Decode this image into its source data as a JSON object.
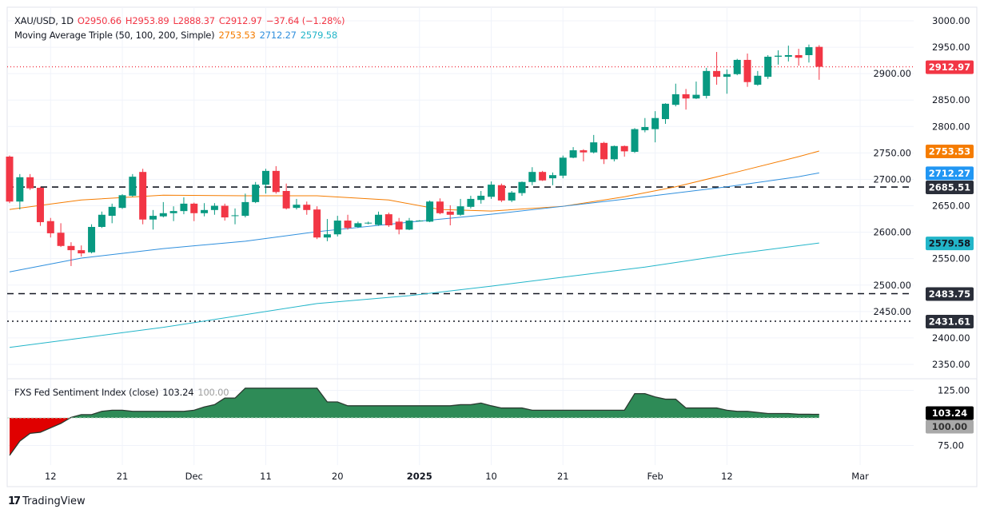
{
  "legend": {
    "symbol": "XAU/USD, 1D",
    "open": "O2950.66",
    "high": "H2953.89",
    "low": "L2888.37",
    "close": "C2912.97",
    "change": "−37.64 (−1.28%)",
    "ma_label": "Moving Average Triple (50, 100, 200, Simple)",
    "ma50": "2753.53",
    "ma100": "2712.27",
    "ma200": "2579.58",
    "sentiment_label": "FXS Fed Sentiment Index (close)",
    "sentiment_value": "103.24",
    "sentiment_base": "100.00"
  },
  "brand": {
    "name": "TradingView"
  },
  "colors": {
    "up": "#089981",
    "down": "#f23645",
    "ma50": "#f57c00",
    "ma100": "#2f8fdd",
    "ma200": "#22b5c9",
    "sentiment_pos": "#2e8b57",
    "sentiment_neg": "#e00000",
    "grid": "#f0f3fa",
    "line": "#131722"
  },
  "chart_data": [
    {
      "type": "candlestick",
      "title": "XAU/USD, 1D",
      "ylim": [
        2325,
        3020
      ],
      "y_ticks": [
        "2350.00",
        "2400.00",
        "2450.00",
        "2500.00",
        "2550.00",
        "2600.00",
        "2650.00",
        "2700.00",
        "2750.00",
        "2800.00",
        "2850.00",
        "2900.00",
        "2950.00",
        "3000.00"
      ],
      "x_ticks": [
        {
          "date": "2024-11-12",
          "label": "12"
        },
        {
          "date": "2024-11-21",
          "label": "21"
        },
        {
          "date": "2024-12-02",
          "label": "Dec"
        },
        {
          "date": "2024-12-11",
          "label": "11"
        },
        {
          "date": "2024-12-20",
          "label": "20"
        },
        {
          "date": "2025-01-01",
          "label": "2025",
          "bold": true
        },
        {
          "date": "2025-01-10",
          "label": "10"
        },
        {
          "date": "2025-01-21",
          "label": "21"
        },
        {
          "date": "2025-02-03",
          "label": "Feb"
        },
        {
          "date": "2025-02-12",
          "label": "12"
        },
        {
          "date": "2025-03-03",
          "label": "Mar"
        }
      ],
      "grid": true,
      "candles_columns": [
        "date",
        "open",
        "high",
        "low",
        "close"
      ],
      "candles": [
        [
          "2024-11-06",
          2743,
          2745,
          2655,
          2658
        ],
        [
          "2024-11-07",
          2658,
          2710,
          2643,
          2704
        ],
        [
          "2024-11-08",
          2704,
          2710,
          2680,
          2683
        ],
        [
          "2024-11-11",
          2684,
          2686,
          2612,
          2619
        ],
        [
          "2024-11-12",
          2621,
          2627,
          2590,
          2598
        ],
        [
          "2024-11-13",
          2599,
          2617,
          2572,
          2574
        ],
        [
          "2024-11-14",
          2574,
          2581,
          2536,
          2566
        ],
        [
          "2024-11-15",
          2566,
          2575,
          2554,
          2560
        ],
        [
          "2024-11-18",
          2562,
          2615,
          2560,
          2610
        ],
        [
          "2024-11-19",
          2610,
          2639,
          2608,
          2633
        ],
        [
          "2024-11-20",
          2631,
          2654,
          2617,
          2648
        ],
        [
          "2024-11-21",
          2646,
          2672,
          2644,
          2670
        ],
        [
          "2024-11-22",
          2669,
          2710,
          2667,
          2705
        ],
        [
          "2024-11-25",
          2714,
          2720,
          2615,
          2624
        ],
        [
          "2024-11-26",
          2624,
          2642,
          2605,
          2631
        ],
        [
          "2024-11-27",
          2630,
          2657,
          2628,
          2636
        ],
        [
          "2024-11-28",
          2636,
          2649,
          2621,
          2640
        ],
        [
          "2024-11-29",
          2640,
          2666,
          2634,
          2654
        ],
        [
          "2024-12-02",
          2654,
          2656,
          2621,
          2636
        ],
        [
          "2024-12-03",
          2636,
          2655,
          2630,
          2642
        ],
        [
          "2024-12-04",
          2642,
          2655,
          2633,
          2650
        ],
        [
          "2024-12-05",
          2650,
          2654,
          2622,
          2628
        ],
        [
          "2024-12-06",
          2631,
          2645,
          2615,
          2632
        ],
        [
          "2024-12-09",
          2631,
          2673,
          2628,
          2657
        ],
        [
          "2024-12-10",
          2657,
          2695,
          2655,
          2690
        ],
        [
          "2024-12-11",
          2690,
          2720,
          2673,
          2716
        ],
        [
          "2024-12-12",
          2716,
          2725,
          2673,
          2676
        ],
        [
          "2024-12-13",
          2678,
          2692,
          2643,
          2645
        ],
        [
          "2024-12-16",
          2646,
          2663,
          2643,
          2652
        ],
        [
          "2024-12-17",
          2652,
          2658,
          2633,
          2642
        ],
        [
          "2024-12-18",
          2643,
          2649,
          2587,
          2590
        ],
        [
          "2024-12-19",
          2590,
          2625,
          2583,
          2596
        ],
        [
          "2024-12-20",
          2596,
          2631,
          2592,
          2622
        ],
        [
          "2024-12-23",
          2622,
          2633,
          2605,
          2608
        ],
        [
          "2024-12-24",
          2610,
          2620,
          2608,
          2617
        ],
        [
          "2024-12-25",
          2617,
          2620,
          2615,
          2618
        ],
        [
          "2024-12-26",
          2614,
          2639,
          2612,
          2633
        ],
        [
          "2024-12-27",
          2634,
          2637,
          2610,
          2613
        ],
        [
          "2024-12-30",
          2620,
          2627,
          2596,
          2605
        ],
        [
          "2024-12-31",
          2605,
          2627,
          2604,
          2622
        ],
        [
          "2025-01-01",
          2622,
          2623,
          2621,
          2622
        ],
        [
          "2025-01-02",
          2620,
          2660,
          2619,
          2658
        ],
        [
          "2025-01-03",
          2658,
          2664,
          2634,
          2636
        ],
        [
          "2025-01-06",
          2639,
          2651,
          2613,
          2633
        ],
        [
          "2025-01-07",
          2633,
          2663,
          2631,
          2649
        ],
        [
          "2025-01-08",
          2648,
          2669,
          2645,
          2663
        ],
        [
          "2025-01-09",
          2661,
          2678,
          2654,
          2669
        ],
        [
          "2025-01-10",
          2667,
          2696,
          2663,
          2690
        ],
        [
          "2025-01-13",
          2689,
          2692,
          2657,
          2660
        ],
        [
          "2025-01-14",
          2660,
          2678,
          2657,
          2675
        ],
        [
          "2025-01-15",
          2674,
          2696,
          2669,
          2695
        ],
        [
          "2025-01-16",
          2695,
          2723,
          2689,
          2714
        ],
        [
          "2025-01-17",
          2714,
          2716,
          2697,
          2698
        ],
        [
          "2025-01-20",
          2702,
          2713,
          2689,
          2708
        ],
        [
          "2025-01-21",
          2707,
          2745,
          2702,
          2741
        ],
        [
          "2025-01-22",
          2741,
          2761,
          2740,
          2755
        ],
        [
          "2025-01-23",
          2755,
          2757,
          2734,
          2751
        ],
        [
          "2025-01-24",
          2751,
          2784,
          2749,
          2770
        ],
        [
          "2025-01-27",
          2769,
          2771,
          2729,
          2738
        ],
        [
          "2025-01-28",
          2738,
          2764,
          2734,
          2763
        ],
        [
          "2025-01-29",
          2763,
          2764,
          2743,
          2753
        ],
        [
          "2025-01-30",
          2752,
          2797,
          2750,
          2795
        ],
        [
          "2025-01-31",
          2793,
          2816,
          2789,
          2799
        ],
        [
          "2025-02-03",
          2795,
          2829,
          2770,
          2816
        ],
        [
          "2025-02-04",
          2814,
          2844,
          2805,
          2843
        ],
        [
          "2025-02-05",
          2841,
          2881,
          2838,
          2861
        ],
        [
          "2025-02-06",
          2861,
          2871,
          2832,
          2853
        ],
        [
          "2025-02-07",
          2853,
          2885,
          2852,
          2860
        ],
        [
          "2025-02-10",
          2858,
          2911,
          2853,
          2905
        ],
        [
          "2025-02-11",
          2905,
          2941,
          2879,
          2894
        ],
        [
          "2025-02-12",
          2894,
          2908,
          2862,
          2899
        ],
        [
          "2025-02-13",
          2899,
          2928,
          2897,
          2926
        ],
        [
          "2025-02-14",
          2926,
          2938,
          2875,
          2884
        ],
        [
          "2025-02-17",
          2879,
          2905,
          2877,
          2896
        ],
        [
          "2025-02-18",
          2894,
          2935,
          2890,
          2932
        ],
        [
          "2025-02-19",
          2932,
          2944,
          2917,
          2934
        ],
        [
          "2025-02-20",
          2932,
          2953,
          2923,
          2935
        ],
        [
          "2025-02-21",
          2935,
          2947,
          2915,
          2930
        ],
        [
          "2025-02-24",
          2935,
          2955,
          2921,
          2950
        ],
        [
          "2025-02-25",
          2950.66,
          2953.89,
          2888.37,
          2912.97
        ]
      ],
      "moving_averages": [
        {
          "name": "MA 50",
          "color_key": "ma50",
          "points": [
            [
              "2024-11-06",
              2643
            ],
            [
              "2024-11-15",
              2661
            ],
            [
              "2024-11-27",
              2670
            ],
            [
              "2024-12-09",
              2669
            ],
            [
              "2024-12-18",
              2669
            ],
            [
              "2024-12-27",
              2661
            ],
            [
              "2025-01-03",
              2643
            ],
            [
              "2025-01-10",
              2640
            ],
            [
              "2025-01-21",
              2649
            ],
            [
              "2025-01-29",
              2667
            ],
            [
              "2025-02-05",
              2686
            ],
            [
              "2025-02-13",
              2714
            ],
            [
              "2025-02-21",
              2743
            ],
            [
              "2025-02-25",
              2753.53
            ]
          ]
        },
        {
          "name": "MA 100",
          "color_key": "ma100",
          "points": [
            [
              "2024-11-06",
              2525
            ],
            [
              "2024-11-15",
              2551
            ],
            [
              "2024-11-27",
              2569
            ],
            [
              "2024-12-09",
              2583
            ],
            [
              "2024-12-18",
              2601
            ],
            [
              "2024-12-31",
              2619
            ],
            [
              "2025-01-10",
              2634
            ],
            [
              "2025-01-21",
              2649
            ],
            [
              "2025-01-31",
              2667
            ],
            [
              "2025-02-12",
              2686
            ],
            [
              "2025-02-21",
              2705
            ],
            [
              "2025-02-25",
              2712.27
            ]
          ]
        },
        {
          "name": "MA 200",
          "color_key": "ma200",
          "points": [
            [
              "2024-11-06",
              2382
            ],
            [
              "2024-11-27",
              2420
            ],
            [
              "2024-12-18",
              2465
            ],
            [
              "2024-12-31",
              2480
            ],
            [
              "2025-01-10",
              2498
            ],
            [
              "2025-01-21",
              2515
            ],
            [
              "2025-01-31",
              2534
            ],
            [
              "2025-02-12",
              2557
            ],
            [
              "2025-02-25",
              2579.58
            ]
          ]
        }
      ],
      "horizontal_lines": [
        {
          "value": 2912.97,
          "label": "2912.97",
          "style": "dotted",
          "color": "#f23645",
          "badge_color": "#f23645"
        },
        {
          "value": 2685.51,
          "label": "2685.51",
          "style": "dashed",
          "color": "#131722",
          "badge_color": "#2a2e39"
        },
        {
          "value": 2483.75,
          "label": "2483.75",
          "style": "dashed",
          "color": "#131722",
          "badge_color": "#2a2e39"
        },
        {
          "value": 2431.61,
          "label": "2431.61",
          "style": "dotted",
          "color": "#131722",
          "badge_color": "#2a2e39"
        }
      ],
      "badges": [
        {
          "value": 2753.53,
          "label": "2753.53",
          "color": "#f57c00"
        },
        {
          "value": 2712.27,
          "label": "2712.27",
          "color": "#2196f3"
        },
        {
          "value": 2579.58,
          "label": "2579.58",
          "color": "#22b5c9",
          "text_color": "#131722"
        }
      ]
    },
    {
      "type": "area",
      "title": "FXS Fed Sentiment Index (close)",
      "baseline": 100,
      "ylim": [
        62,
        130
      ],
      "y_ticks": [
        "75.00",
        "125.00"
      ],
      "badges": [
        {
          "label": "103.24",
          "color": "#000000"
        },
        {
          "label": "100.00",
          "color": "#a9a9a9"
        }
      ],
      "values": [
        66,
        79,
        86,
        87,
        91,
        95,
        100.5,
        103,
        103,
        106,
        107,
        107,
        106,
        106,
        106,
        106,
        106,
        106,
        107,
        110,
        112,
        118,
        118,
        127,
        127,
        127,
        127,
        127,
        127,
        127,
        127,
        114.5,
        114.5,
        111,
        111,
        111,
        111,
        111,
        111,
        111,
        111,
        111,
        111,
        111,
        112,
        112,
        113.5,
        111,
        109,
        109,
        109,
        107,
        107,
        107,
        107,
        107,
        107,
        107,
        107,
        107,
        107,
        122,
        122,
        119,
        117,
        117,
        109,
        109,
        109,
        109,
        107,
        106,
        106,
        105,
        104,
        104,
        104,
        103.3,
        103.3,
        103.24
      ]
    }
  ]
}
